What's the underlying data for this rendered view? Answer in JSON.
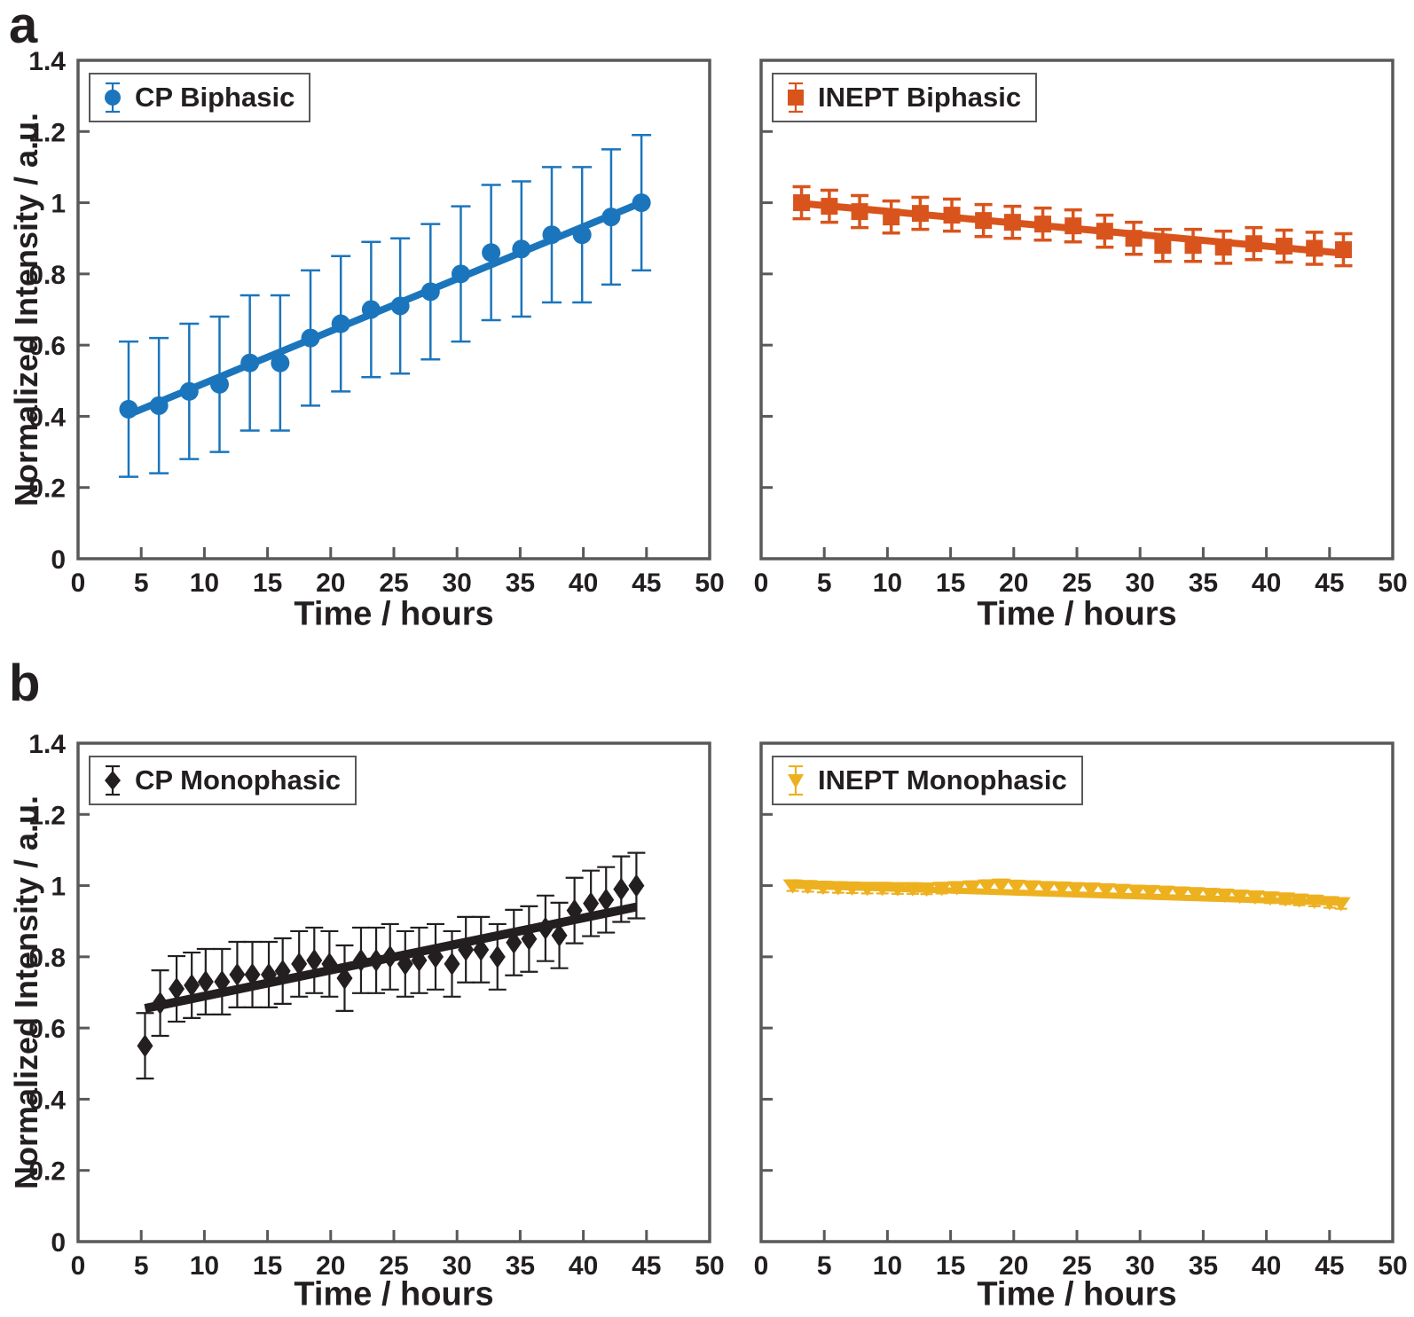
{
  "panels": [
    {
      "label": "a"
    },
    {
      "label": "b"
    }
  ],
  "axes": {
    "x": {
      "label": "Time / hours",
      "min": 0,
      "max": 50,
      "ticks": [
        0,
        5,
        10,
        15,
        20,
        25,
        30,
        35,
        40,
        45,
        50
      ],
      "tick_labels": [
        "0",
        "5",
        "10",
        "15",
        "20",
        "25",
        "30",
        "35",
        "40",
        "45",
        "50"
      ]
    },
    "y": {
      "label": "Normalized Intensity / a.u.",
      "min": 0,
      "max": 1.4,
      "ticks": [
        0,
        0.2,
        0.4,
        0.6,
        0.8,
        1,
        1.2,
        1.4
      ],
      "tick_labels": [
        "0",
        "0.2",
        "0.4",
        "0.6",
        "0.8",
        "1",
        "1.2",
        "1.4"
      ]
    }
  },
  "frame_color": "#58595B",
  "text_color": "#231F20",
  "chart_data": [
    {
      "id": "cp-biphasic",
      "panel": "a",
      "type": "scatter",
      "legend": "CP Biphasic",
      "marker": "circle",
      "color": "#1B75BC",
      "xlabel": "Time / hours",
      "ylabel": "Normalized Intensity / a.u.",
      "xlim": [
        0,
        50
      ],
      "ylim": [
        0,
        1.4
      ],
      "grid": false,
      "legend_position": "top-left",
      "x": [
        4,
        6.4,
        8.8,
        11.2,
        13.6,
        16,
        18.4,
        20.8,
        23.2,
        25.5,
        27.9,
        30.3,
        32.7,
        35.1,
        37.5,
        39.9,
        42.2,
        44.6
      ],
      "y": [
        0.42,
        0.43,
        0.47,
        0.49,
        0.55,
        0.55,
        0.62,
        0.66,
        0.7,
        0.71,
        0.75,
        0.8,
        0.86,
        0.87,
        0.91,
        0.91,
        0.96,
        1.0
      ],
      "yerr": 0.19,
      "fit": {
        "x": [
          4,
          44.6
        ],
        "y": [
          0.405,
          1.0
        ]
      }
    },
    {
      "id": "inept-biphasic",
      "panel": "a",
      "type": "scatter",
      "legend": "INEPT Biphasic",
      "marker": "square",
      "color": "#D9541C",
      "xlabel": "Time / hours",
      "ylabel": "Normalized Intensity / a.u.",
      "xlim": [
        0,
        50
      ],
      "ylim": [
        0,
        1.4
      ],
      "grid": false,
      "legend_position": "top-left",
      "x": [
        3.2,
        5.4,
        7.8,
        10.3,
        12.6,
        15.1,
        17.6,
        19.9,
        22.3,
        24.7,
        27.2,
        29.5,
        31.8,
        34.2,
        36.6,
        39,
        41.4,
        43.8,
        46.1
      ],
      "y": [
        1.0,
        0.99,
        0.975,
        0.96,
        0.97,
        0.965,
        0.95,
        0.945,
        0.94,
        0.935,
        0.92,
        0.9,
        0.88,
        0.88,
        0.875,
        0.885,
        0.878,
        0.872,
        0.868
      ],
      "yerr": 0.045,
      "fit": {
        "x": [
          3.2,
          46.1
        ],
        "y": [
          0.998,
          0.858
        ]
      }
    },
    {
      "id": "cp-monophasic",
      "panel": "b",
      "type": "scatter",
      "legend": "CP Monophasic",
      "marker": "diamond",
      "color": "#231F20",
      "xlabel": "Time / hours",
      "ylabel": "Normalized Intensity / a.u.",
      "xlim": [
        0,
        50
      ],
      "ylim": [
        0,
        1.4
      ],
      "grid": false,
      "legend_position": "top-left",
      "x": [
        5.3,
        6.5,
        7.8,
        9,
        10.1,
        11.4,
        12.6,
        13.8,
        15.1,
        16.2,
        17.5,
        18.7,
        19.9,
        21.1,
        22.4,
        23.6,
        24.7,
        25.9,
        27,
        28.3,
        29.6,
        30.7,
        31.9,
        33.2,
        34.5,
        35.7,
        37,
        38.1,
        39.3,
        40.6,
        41.8,
        43,
        44.2
      ],
      "y": [
        0.55,
        0.67,
        0.71,
        0.72,
        0.73,
        0.73,
        0.75,
        0.75,
        0.75,
        0.76,
        0.78,
        0.79,
        0.78,
        0.74,
        0.79,
        0.79,
        0.8,
        0.78,
        0.79,
        0.8,
        0.78,
        0.82,
        0.82,
        0.8,
        0.84,
        0.85,
        0.88,
        0.86,
        0.93,
        0.95,
        0.96,
        0.99,
        1.0
      ],
      "yerr": 0.092,
      "fit": {
        "x": [
          5.3,
          44.2
        ],
        "y": [
          0.655,
          0.94
        ]
      }
    },
    {
      "id": "inept-monophasic",
      "panel": "b",
      "type": "scatter",
      "legend": "INEPT Monophasic",
      "marker": "triangle-down",
      "color": "#EDB120",
      "xlabel": "Time / hours",
      "ylabel": "Normalized Intensity / a.u.",
      "xlim": [
        0,
        50
      ],
      "ylim": [
        0,
        1.4
      ],
      "grid": false,
      "legend_position": "top-left",
      "x": [
        2.5,
        3.7,
        4.9,
        6.1,
        7.2,
        8.4,
        9.6,
        10.8,
        12,
        13.1,
        14.3,
        15.5,
        16.7,
        17.9,
        19,
        20.2,
        21.4,
        22.6,
        23.8,
        24.9,
        26.1,
        27.3,
        28.5,
        29.7,
        30.8,
        32,
        33.2,
        34.4,
        35.6,
        36.7,
        37.9,
        39.1,
        40.3,
        41.5,
        42.6,
        43.8,
        45,
        45.9
      ],
      "y": [
        1.0,
        0.998,
        0.996,
        0.995,
        0.994,
        0.993,
        0.993,
        0.992,
        0.992,
        0.991,
        0.993,
        0.995,
        0.997,
        1.0,
        1.002,
        0.999,
        0.997,
        0.995,
        0.994,
        0.992,
        0.991,
        0.989,
        0.987,
        0.985,
        0.984,
        0.982,
        0.98,
        0.978,
        0.976,
        0.974,
        0.971,
        0.969,
        0.966,
        0.963,
        0.96,
        0.957,
        0.953,
        0.95
      ],
      "yerr": 0.015,
      "fit": {
        "x": [
          2.5,
          45.9
        ],
        "y": [
          1.0,
          0.952
        ]
      }
    }
  ]
}
